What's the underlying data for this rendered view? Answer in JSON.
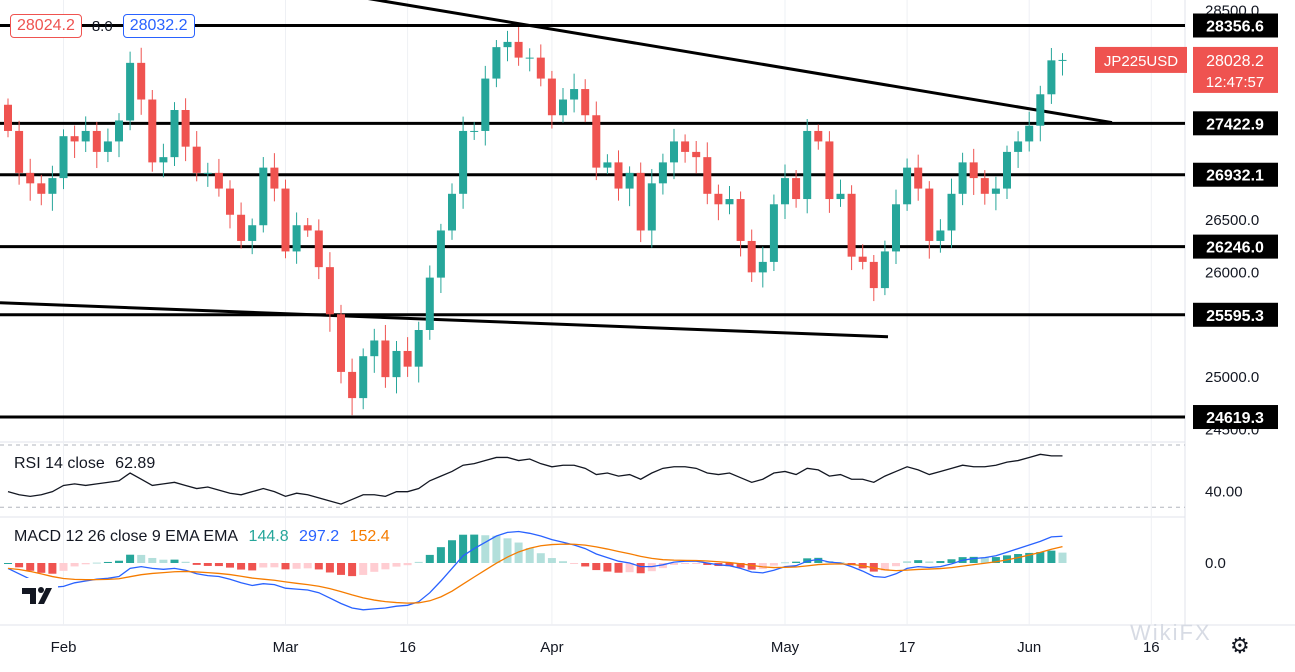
{
  "quote": {
    "bid": "28024.2",
    "spread": "8.0",
    "ask": "28032.2"
  },
  "symbol": {
    "name": "JP225USD",
    "price": "28028.2",
    "countdown": "12:47:57"
  },
  "rsi": {
    "label": "RSI 14 close",
    "value": "62.89"
  },
  "macd": {
    "label": "MACD 12 26 close 9 EMA EMA",
    "hist": "144.8",
    "macd": "297.2",
    "signal": "152.4"
  },
  "watermark": "WikiFX",
  "icons": {
    "logo": "tradingview-logo",
    "settings": "gear-icon"
  },
  "colors": {
    "up": "#26a69a",
    "down": "#ef5350",
    "rsi": "#131722",
    "macd": "#2962ff",
    "signal": "#f57c00",
    "hist_up": "#26a69a",
    "hist_down": "#ef5350"
  },
  "chart_data": [
    {
      "type": "candlestick",
      "title": "JP225USD",
      "x": [
        "2021-01-25",
        "2021-01-26",
        "2021-01-27",
        "2021-01-28",
        "2021-01-29",
        "2021-02-01",
        "2021-02-02",
        "2021-02-03",
        "2021-02-04",
        "2021-02-05",
        "2021-02-08",
        "2021-02-09",
        "2021-02-10",
        "2021-02-11",
        "2021-02-12",
        "2021-02-15",
        "2021-02-16",
        "2021-02-17",
        "2021-02-18",
        "2021-02-19",
        "2021-02-22",
        "2021-02-23",
        "2021-02-24",
        "2021-02-25",
        "2021-02-26",
        "2021-03-01",
        "2021-03-02",
        "2021-03-03",
        "2021-03-04",
        "2021-03-05",
        "2021-03-08",
        "2021-03-09",
        "2021-03-10",
        "2021-03-11",
        "2021-03-12",
        "2021-03-15",
        "2021-03-16",
        "2021-03-17",
        "2021-03-18",
        "2021-03-19",
        "2021-03-22",
        "2021-03-23",
        "2021-03-24",
        "2021-03-25",
        "2021-03-26",
        "2021-03-29",
        "2021-03-30",
        "2021-03-31",
        "2021-04-01",
        "2021-04-02",
        "2021-04-05",
        "2021-04-06",
        "2021-04-07",
        "2021-04-08",
        "2021-04-09",
        "2021-04-12",
        "2021-04-13",
        "2021-04-14",
        "2021-04-15",
        "2021-04-16",
        "2021-04-19",
        "2021-04-20",
        "2021-04-21",
        "2021-04-22",
        "2021-04-23",
        "2021-04-26",
        "2021-04-27",
        "2021-04-28",
        "2021-04-29",
        "2021-04-30",
        "2021-05-03",
        "2021-05-04",
        "2021-05-05",
        "2021-05-06",
        "2021-05-07",
        "2021-05-10",
        "2021-05-11",
        "2021-05-12",
        "2021-05-13",
        "2021-05-14",
        "2021-05-17",
        "2021-05-18",
        "2021-05-19",
        "2021-05-20",
        "2021-05-21",
        "2021-05-24",
        "2021-05-25",
        "2021-05-26",
        "2021-05-27",
        "2021-05-28",
        "2021-05-31",
        "2021-06-01",
        "2021-06-02",
        "2021-06-03",
        "2021-06-04",
        "2021-06-07"
      ],
      "x_ticks": [
        "Feb",
        "Mar",
        "16",
        "Apr",
        "May",
        "17",
        "Jun",
        "16"
      ],
      "open": [
        27600,
        27350,
        26950,
        26850,
        26750,
        26900,
        27300,
        27250,
        27350,
        27150,
        27250,
        27450,
        28000,
        27650,
        27050,
        27100,
        27550,
        27200,
        26950,
        26950,
        26800,
        26550,
        26300,
        26450,
        27000,
        26800,
        26200,
        26450,
        26400,
        26050,
        25600,
        25050,
        24800,
        25200,
        25350,
        25000,
        25250,
        25100,
        25450,
        25950,
        26400,
        26750,
        27350,
        27350,
        27850,
        28150,
        28200,
        28050,
        28050,
        27850,
        27500,
        27650,
        27750,
        27500,
        27000,
        27050,
        26800,
        26950,
        26400,
        26850,
        27050,
        27250,
        27150,
        27100,
        26750,
        26650,
        26700,
        26300,
        26000,
        26100,
        26650,
        26900,
        26700,
        27350,
        27250,
        26700,
        26750,
        26150,
        26100,
        25850,
        26200,
        26650,
        27000,
        26800,
        26300,
        26400,
        26750,
        27050,
        26900,
        26750,
        26800,
        27150,
        27250,
        27400,
        27700,
        28024
      ],
      "close": [
        27350,
        26950,
        26850,
        26750,
        26900,
        27300,
        27250,
        27350,
        27150,
        27250,
        27450,
        28000,
        27650,
        27050,
        27100,
        27550,
        27200,
        26950,
        26950,
        26800,
        26550,
        26300,
        26450,
        27000,
        26800,
        26200,
        26450,
        26400,
        26050,
        25600,
        25050,
        24800,
        25200,
        25350,
        25000,
        25250,
        25100,
        25450,
        25950,
        26400,
        26750,
        27350,
        27350,
        27850,
        28150,
        28200,
        28050,
        28050,
        27850,
        27500,
        27650,
        27750,
        27500,
        27000,
        27050,
        26800,
        26950,
        26400,
        26850,
        27050,
        27250,
        27150,
        27100,
        26750,
        26650,
        26700,
        26300,
        26000,
        26100,
        26650,
        26900,
        26700,
        27350,
        27250,
        26700,
        26750,
        26150,
        26100,
        25850,
        26200,
        26650,
        27000,
        26800,
        26300,
        26400,
        26750,
        27050,
        26900,
        26750,
        26800,
        27150,
        27250,
        27400,
        27700,
        28024,
        28028
      ],
      "levels": [
        "28356.6",
        "27422.9",
        "26932.1",
        "26246.0",
        "25595.3",
        "24619.3"
      ],
      "ylim": [
        24400,
        28600
      ],
      "y_ticks": [
        "28500.0",
        "26500.0",
        "26000.0",
        "25000.0",
        "24500.0"
      ]
    },
    {
      "type": "line",
      "title": "RSI 14 close",
      "y_ticks": [
        "40.00"
      ],
      "values": [
        40,
        38,
        37,
        38,
        40,
        44,
        45,
        44,
        45,
        46,
        47,
        52,
        48,
        44,
        45,
        46,
        44,
        42,
        43,
        41,
        39,
        38,
        40,
        42,
        40,
        37,
        39,
        38,
        36,
        34,
        32,
        35,
        38,
        38,
        37,
        40,
        40,
        42,
        47,
        50,
        53,
        57,
        58,
        60,
        62,
        62,
        60,
        61,
        58,
        56,
        57,
        57,
        55,
        51,
        52,
        50,
        51,
        48,
        52,
        55,
        56,
        56,
        55,
        52,
        51,
        52,
        49,
        46,
        48,
        52,
        53,
        51,
        55,
        54,
        50,
        51,
        48,
        48,
        46,
        50,
        53,
        56,
        54,
        51,
        53,
        55,
        57,
        56,
        56,
        57,
        59,
        60,
        62,
        64,
        63,
        63
      ]
    },
    {
      "type": "line",
      "title": "MACD 12 26 close 9 EMA EMA",
      "y_ticks": [
        "0.0"
      ],
      "macd": [
        -60,
        -120,
        -180,
        -230,
        -270,
        -260,
        -220,
        -200,
        -180,
        -170,
        -150,
        -60,
        -40,
        -60,
        -70,
        -60,
        -80,
        -120,
        -140,
        -150,
        -180,
        -220,
        -250,
        -230,
        -240,
        -280,
        -290,
        -300,
        -330,
        -390,
        -450,
        -500,
        -520,
        -510,
        -500,
        -480,
        -470,
        -430,
        -330,
        -200,
        -60,
        80,
        160,
        230,
        300,
        340,
        350,
        330,
        300,
        260,
        230,
        200,
        160,
        100,
        60,
        20,
        0,
        -40,
        -40,
        -20,
        10,
        20,
        20,
        0,
        -20,
        -30,
        -60,
        -100,
        -110,
        -80,
        -40,
        -30,
        20,
        40,
        10,
        0,
        -40,
        -90,
        -150,
        -160,
        -120,
        -60,
        -40,
        -50,
        -40,
        -10,
        30,
        50,
        60,
        80,
        120,
        160,
        200,
        240,
        290,
        297
      ]
    }
  ]
}
